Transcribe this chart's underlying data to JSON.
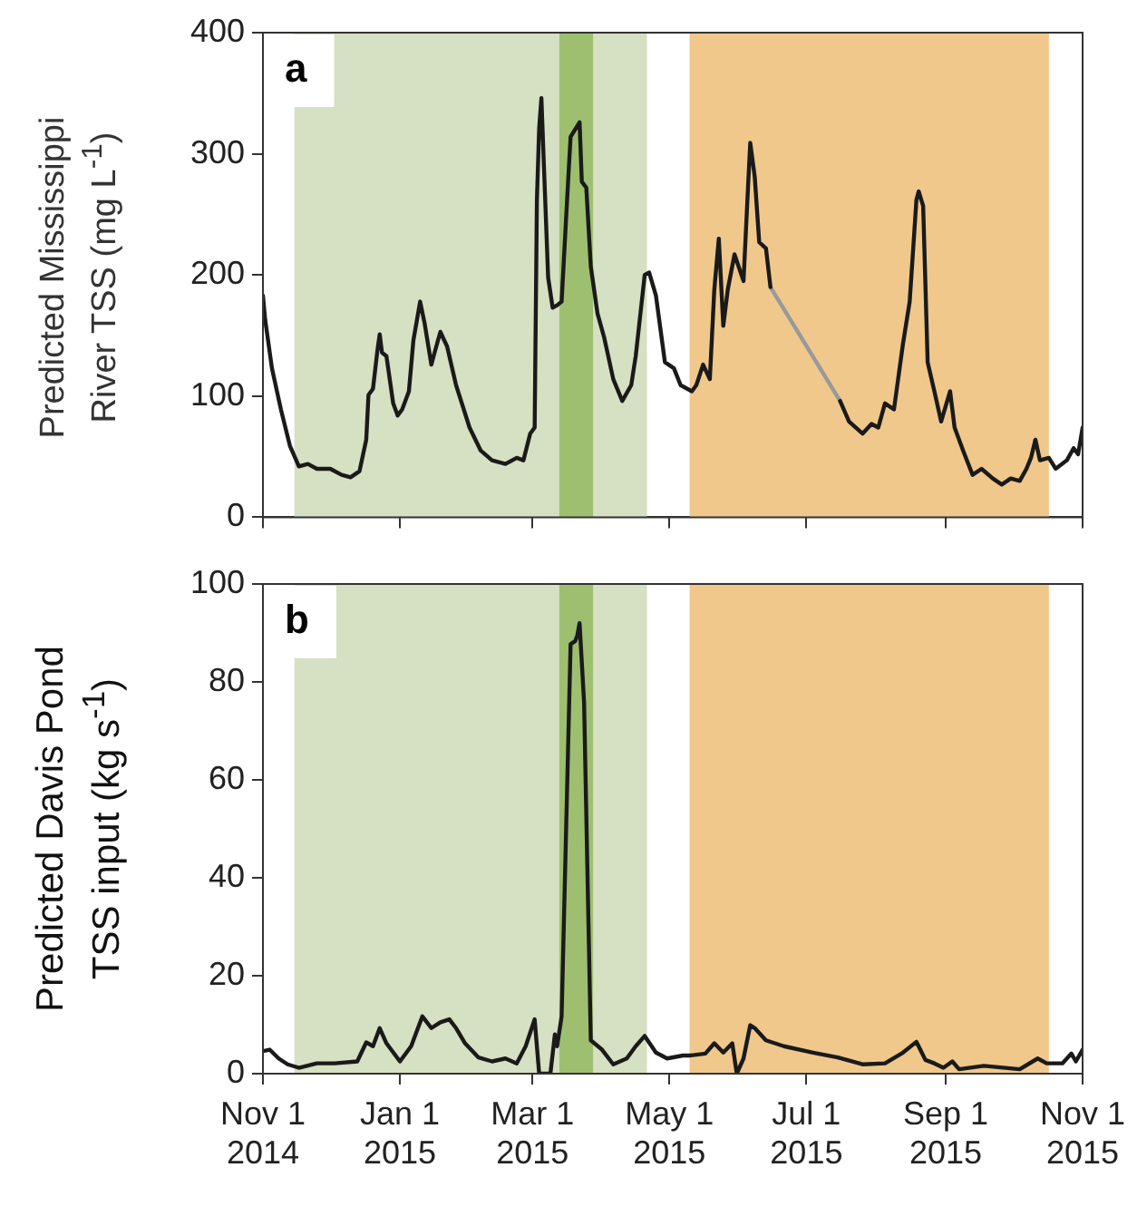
{
  "chart_data": [
    {
      "type": "line",
      "ylabel": "Predicted Mississippi River TSS (mg L$^{-1}$)",
      "annotations": [
        "a"
      ],
      "tick_labels": "y",
      "xlim": [
        "2014-11-01",
        "2015-11-01"
      ],
      "xticks": [
        {
          "value": "2014-11-01",
          "label": null
        },
        {
          "value": "2015-01-01",
          "label": null
        },
        {
          "value": "2015-03-01",
          "label": null
        },
        {
          "value": "2015-05-01",
          "label": null
        },
        {
          "value": "2015-07-01",
          "label": null
        },
        {
          "value": "2015-09-01",
          "label": null
        },
        {
          "value": "2015-11-01",
          "label": null
        }
      ],
      "ylim": [
        0,
        400
      ],
      "yticks": [
        0,
        100,
        200,
        300,
        400
      ],
      "bands": [
        {
          "axis": "x",
          "from": "2014-11-15",
          "to": "2015-04-21",
          "color": "#d6e0c2"
        },
        {
          "axis": "x",
          "from": "2015-03-13",
          "to": "2015-03-28",
          "color": "#9ebf70"
        },
        {
          "axis": "x",
          "from": "2015-05-10",
          "to": "2015-10-17",
          "color": "#f0c88c"
        }
      ],
      "x": [
        "2014-11-01",
        "2014-11-02",
        "2014-11-05",
        "2014-11-09",
        "2014-11-13",
        "2014-11-17",
        "2014-11-21",
        "2014-11-25",
        "2014-12-01",
        "2014-12-06",
        "2014-12-10",
        "2014-12-14",
        "2014-12-17",
        "2014-12-18",
        "2014-12-20",
        "2014-12-22",
        "2014-12-23",
        "2014-12-24",
        "2014-12-26",
        "2014-12-29",
        "2014-12-31",
        "2015-01-02",
        "2015-01-05",
        "2015-01-07",
        "2015-01-10",
        "2015-01-12",
        "2015-01-15",
        "2015-01-16",
        "2015-01-19",
        "2015-01-22",
        "2015-01-26",
        "2015-02-01",
        "2015-02-06",
        "2015-02-11",
        "2015-02-17",
        "2015-02-22",
        "2015-02-25",
        "2015-02-28",
        "2015-03-02",
        "2015-03-03",
        "2015-03-04",
        "2015-03-05",
        "2015-03-06",
        "2015-03-08",
        "2015-03-10",
        "2015-03-12",
        "2015-03-14",
        "2015-03-17",
        "2015-03-18",
        "2015-03-22",
        "2015-03-23",
        "2015-03-25",
        "2015-03-27",
        "2015-03-30",
        "2015-04-02",
        "2015-04-06",
        "2015-04-10",
        "2015-04-14",
        "2015-04-16",
        "2015-04-20",
        "2015-04-22",
        "2015-04-25",
        "2015-04-29",
        "2015-05-03",
        "2015-05-06",
        "2015-05-11",
        "2015-05-13",
        "2015-05-16",
        "2015-05-19",
        "2015-05-21",
        "2015-05-23",
        "2015-05-25",
        "2015-05-27",
        "2015-05-30",
        "2015-06-03",
        "2015-06-05",
        "2015-06-06",
        "2015-06-08",
        "2015-06-10",
        "2015-06-13",
        "2015-06-15",
        "2015-07-01",
        "2015-07-16",
        "2015-07-20",
        "2015-07-26",
        "2015-07-30",
        "2015-08-02",
        "2015-08-05",
        "2015-08-09",
        "2015-08-13",
        "2015-08-16",
        "2015-08-19",
        "2015-08-20",
        "2015-08-22",
        "2015-08-24",
        "2015-08-27",
        "2015-08-30",
        "2015-09-03",
        "2015-09-05",
        "2015-09-09",
        "2015-09-13",
        "2015-09-17",
        "2015-09-22",
        "2015-09-26",
        "2015-09-30",
        "2015-10-04",
        "2015-10-07",
        "2015-10-09",
        "2015-10-11",
        "2015-10-13",
        "2015-10-17",
        "2015-10-20",
        "2015-10-25",
        "2015-10-28",
        "2015-10-30",
        "2015-11-01"
      ],
      "series": [
        {
          "color": "#1a1a1a",
          "values": [
            183,
            163,
            123,
            89,
            59,
            42,
            44,
            40,
            40,
            35,
            33,
            38,
            64,
            101,
            106,
            138,
            151,
            136,
            133,
            94,
            84,
            89,
            104,
            146,
            178,
            160,
            126,
            133,
            153,
            141,
            109,
            74,
            55,
            47,
            44,
            49,
            47,
            69,
            74,
            262,
            321,
            346,
            296,
            198,
            173,
            175,
            178,
            281,
            314,
            326,
            277,
            272,
            207,
            168,
            148,
            114,
            96,
            109,
            133,
            200,
            202,
            183,
            128,
            123,
            109,
            104,
            109,
            126,
            114,
            188,
            230,
            158,
            188,
            217,
            195,
            272,
            309,
            281,
            227,
            222,
            190,
            null,
            96,
            79,
            69,
            77,
            74,
            94,
            89,
            143,
            178,
            262,
            269,
            257,
            128,
            104,
            79,
            104,
            74,
            54,
            35,
            40,
            32,
            27,
            32,
            30,
            40,
            49,
            64,
            47,
            49,
            40,
            47,
            57,
            52,
            74
          ]
        },
        {
          "color": "#999999",
          "x": [
            "2015-06-15",
            "2015-07-16"
          ],
          "values": [
            190,
            96
          ]
        }
      ]
    },
    {
      "type": "line",
      "ylabel": "Predicted Davis Pond TSS input (kg s$^{-1}$)",
      "annotations": [
        "b"
      ],
      "xlim": [
        "2014-11-01",
        "2015-11-01"
      ],
      "xticks": [
        {
          "value": "2014-11-01",
          "label": "Nov 1\n2014"
        },
        {
          "value": "2015-01-01",
          "label": "Jan 1\n2015"
        },
        {
          "value": "2015-03-01",
          "label": "Mar 1\n2015"
        },
        {
          "value": "2015-05-01",
          "label": "May 1\n2015"
        },
        {
          "value": "2015-07-01",
          "label": "Jul 1\n2015"
        },
        {
          "value": "2015-09-01",
          "label": "Sep 1\n2015"
        },
        {
          "value": "2015-11-01",
          "label": "Nov 1\n2015"
        }
      ],
      "ylim": [
        0,
        100
      ],
      "yticks": [
        0,
        20,
        40,
        60,
        80,
        100
      ],
      "bands": [
        {
          "axis": "x",
          "from": "2014-11-15",
          "to": "2015-04-21",
          "color": "#d6e0c2"
        },
        {
          "axis": "x",
          "from": "2015-03-13",
          "to": "2015-03-28",
          "color": "#9ebf70"
        },
        {
          "axis": "x",
          "from": "2015-05-10",
          "to": "2015-10-17",
          "color": "#f0c88c"
        }
      ],
      "x": [
        "2014-11-01",
        "2014-11-04",
        "2014-11-08",
        "2014-11-12",
        "2014-11-17",
        "2014-11-25",
        "2014-12-03",
        "2014-12-13",
        "2014-12-17",
        "2014-12-20",
        "2014-12-23",
        "2014-12-26",
        "2015-01-01",
        "2015-01-06",
        "2015-01-11",
        "2015-01-15",
        "2015-01-19",
        "2015-01-23",
        "2015-01-26",
        "2015-01-30",
        "2015-02-05",
        "2015-02-11",
        "2015-02-17",
        "2015-02-22",
        "2015-02-26",
        "2015-03-02",
        "2015-03-04",
        "2015-03-09",
        "2015-03-11",
        "2015-03-12",
        "2015-03-14",
        "2015-03-18",
        "2015-03-20",
        "2015-03-21",
        "2015-03-22",
        "2015-03-24",
        "2015-03-27",
        "2015-04-01",
        "2015-04-06",
        "2015-04-12",
        "2015-04-16",
        "2015-04-20",
        "2015-04-25",
        "2015-04-30",
        "2015-05-07",
        "2015-05-10",
        "2015-05-17",
        "2015-05-21",
        "2015-05-25",
        "2015-05-29",
        "2015-05-31",
        "2015-06-03",
        "2015-06-06",
        "2015-06-08",
        "2015-06-13",
        "2015-06-21",
        "2015-07-04",
        "2015-07-15",
        "2015-07-26",
        "2015-08-05",
        "2015-08-13",
        "2015-08-19",
        "2015-08-23",
        "2015-08-27",
        "2015-08-31",
        "2015-09-04",
        "2015-09-07",
        "2015-09-18",
        "2015-10-04",
        "2015-10-12",
        "2015-10-16",
        "2015-10-23",
        "2015-10-27",
        "2015-10-29",
        "2015-11-01"
      ],
      "series": [
        {
          "color": "#1a1a1a",
          "values": [
            4.6,
            4.9,
            3.1,
            1.9,
            1.2,
            2.1,
            2.1,
            2.5,
            6.4,
            5.6,
            9.3,
            6.2,
            2.5,
            5.6,
            11.7,
            9.3,
            10.5,
            11.1,
            9.3,
            6.2,
            3.3,
            2.5,
            3.1,
            2.1,
            5.6,
            11.1,
            0,
            0,
            8.0,
            5.6,
            11.7,
            87.7,
            88.3,
            89.5,
            92,
            75.9,
            6.8,
            4.9,
            1.9,
            3.1,
            5.6,
            7.7,
            4.3,
            3.1,
            3.7,
            3.7,
            4.1,
            6.2,
            4.3,
            6.2,
            0,
            3.1,
            9.9,
            9.3,
            6.8,
            5.6,
            4.3,
            3.3,
            1.9,
            2.1,
            4.3,
            6.5,
            2.8,
            2.1,
            1.2,
            2.5,
            0.9,
            1.6,
            0.9,
            3.1,
            2.1,
            2.1,
            4.1,
            2.5,
            4.9
          ]
        }
      ]
    }
  ]
}
